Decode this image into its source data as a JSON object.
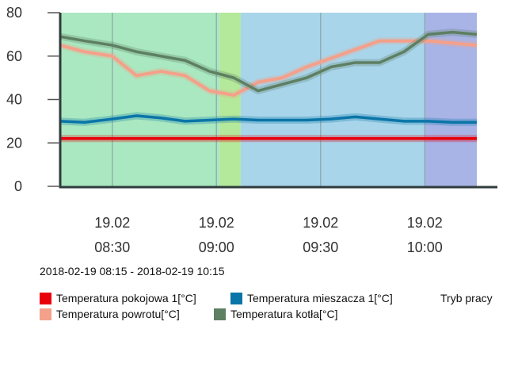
{
  "chart_data": {
    "type": "line",
    "date_range": "2018-02-19 08:15 - 2018-02-19 10:15",
    "x": [
      "08:15",
      "08:22",
      "08:30",
      "08:37",
      "08:44",
      "08:51",
      "08:58",
      "09:05",
      "09:12",
      "09:19",
      "09:26",
      "09:33",
      "09:40",
      "09:47",
      "09:54",
      "10:01",
      "10:08",
      "10:15"
    ],
    "x_ticks": [
      {
        "date": "19.02",
        "time": "08:30"
      },
      {
        "date": "19.02",
        "time": "09:00"
      },
      {
        "date": "19.02",
        "time": "09:30"
      },
      {
        "date": "19.02",
        "time": "10:00"
      }
    ],
    "y_ticks": [
      0,
      20,
      40,
      60,
      80
    ],
    "ylim": [
      0,
      80
    ],
    "xlim": [
      "08:15",
      "10:15"
    ],
    "grid": "vertical at x ticks",
    "series": [
      {
        "name": "Temperatura pokojowa 1[°C]",
        "color": "#e8000b",
        "values": [
          22,
          22,
          22,
          22,
          22,
          22,
          22,
          22,
          22,
          22,
          22,
          22,
          22,
          22,
          22,
          22,
          22,
          22
        ]
      },
      {
        "name": "Temperatura mieszacza 1[°C]",
        "color": "#0a75a8",
        "values": [
          30,
          29.5,
          31,
          32.5,
          31.5,
          30,
          30.5,
          31,
          30.5,
          30.5,
          30.5,
          31,
          32,
          31,
          30,
          30,
          29.5,
          29.5
        ]
      },
      {
        "name": "Temperatura powrotu[°C]",
        "color": "#f4a08a",
        "values": [
          65,
          62,
          60,
          51,
          53,
          51,
          44,
          42,
          48,
          50,
          55,
          59,
          63,
          67,
          67,
          67,
          66,
          65
        ]
      },
      {
        "name": "Temperatura kotła[°C]",
        "color": "#5d7f62",
        "values": [
          69,
          67,
          65,
          62,
          60,
          58,
          53,
          50,
          44,
          47,
          50,
          55,
          57,
          57,
          62,
          70,
          71,
          70
        ]
      }
    ],
    "mode_legend": "Tryb pracy",
    "mode_bands": [
      {
        "from": "08:15",
        "to": "09:01",
        "color": "#a9e8c0"
      },
      {
        "from": "09:01",
        "to": "09:07",
        "color": "#b4e89a"
      },
      {
        "from": "09:07",
        "to": "10:00",
        "color": "#a8d5ea"
      },
      {
        "from": "10:00",
        "to": "10:15",
        "color": "#a8b3e6"
      }
    ]
  }
}
